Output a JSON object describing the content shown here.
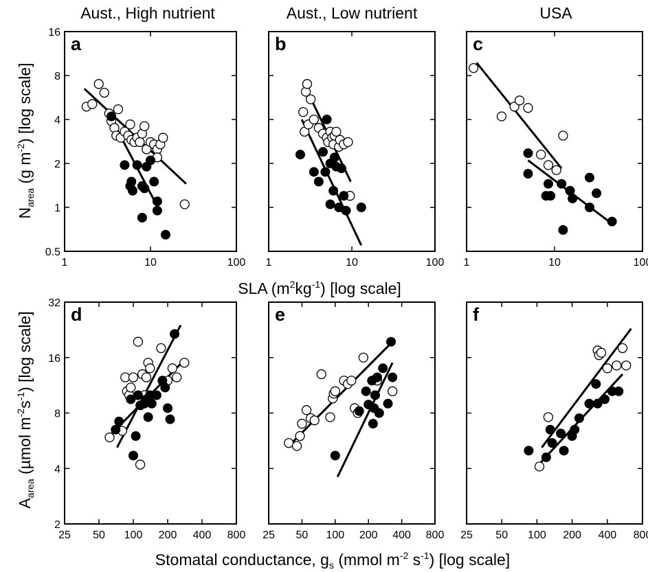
{
  "figure": {
    "column_titles": [
      "Aust., High nutrient",
      "Aust., Low nutrient",
      "USA"
    ],
    "top_row": {
      "ylabel_main": "N",
      "ylabel_sub": "area",
      "ylabel_rest": " (g m",
      "ylabel_sup": "-2",
      "ylabel_tail": ") [log scale]",
      "xlabel_main": "SLA (m",
      "xlabel_sup": "2",
      "xlabel_mid": "kg",
      "xlabel_sup2": "-1",
      "xlabel_tail": ") [log scale]"
    },
    "bottom_row": {
      "ylabel_main": "A",
      "ylabel_sub": "area",
      "ylabel_rest": " (µmol m",
      "ylabel_sup": "-2",
      "ylabel_mid": "s",
      "ylabel_sup2": "-1",
      "ylabel_tail": ") [log scale]",
      "xlabel_main": "Stomatal conductance, g",
      "xlabel_sub": "s",
      "xlabel_rest": " (mmol m",
      "xlabel_sup": "-2",
      "xlabel_mid": " s",
      "xlabel_sup2": "-1",
      "xlabel_tail": ") [log scale]"
    }
  },
  "chart_data": [
    {
      "panel": "a",
      "type": "scatter",
      "xscale": "log",
      "yscale": "log",
      "xlim": [
        1,
        100
      ],
      "ylim": [
        0.5,
        16
      ],
      "xticks": [
        "1",
        "10",
        "100"
      ],
      "xtick_values": [
        1,
        10,
        100
      ],
      "yticks": [
        "0.5",
        "1",
        "2",
        "4",
        "8",
        "16"
      ],
      "ytick_values": [
        0.5,
        1,
        2,
        4,
        8,
        16
      ],
      "series": [
        {
          "style": "open",
          "points": [
            [
              1.8,
              4.9
            ],
            [
              2.1,
              5.1
            ],
            [
              2.5,
              7.0
            ],
            [
              2.9,
              6.1
            ],
            [
              3.3,
              4.4
            ],
            [
              3.5,
              3.9
            ],
            [
              3.8,
              3.5
            ],
            [
              4.0,
              3.1
            ],
            [
              4.2,
              4.7
            ],
            [
              4.5,
              3.0
            ],
            [
              5.0,
              3.3
            ],
            [
              5.5,
              3.1
            ],
            [
              5.8,
              3.7
            ],
            [
              6.0,
              2.9
            ],
            [
              6.5,
              2.8
            ],
            [
              7.0,
              3.0
            ],
            [
              7.5,
              2.8
            ],
            [
              8.0,
              3.2
            ],
            [
              8.5,
              3.6
            ],
            [
              9.0,
              2.5
            ],
            [
              10,
              2.8
            ],
            [
              11,
              2.7
            ],
            [
              12,
              2.5
            ],
            [
              12,
              2.2
            ],
            [
              13,
              2.7
            ],
            [
              14,
              3.0
            ],
            [
              25,
              1.05
            ]
          ]
        },
        {
          "style": "filled",
          "points": [
            [
              3.5,
              4.2
            ],
            [
              5.0,
              1.95
            ],
            [
              5.8,
              1.4
            ],
            [
              6.0,
              1.5
            ],
            [
              6.2,
              1.3
            ],
            [
              7.0,
              1.95
            ],
            [
              8.0,
              1.4
            ],
            [
              8.0,
              0.85
            ],
            [
              8.5,
              1.35
            ],
            [
              9.0,
              1.9
            ],
            [
              10,
              2.1
            ],
            [
              11,
              1.5
            ],
            [
              12,
              1.1
            ],
            [
              12,
              0.95
            ],
            [
              15,
              0.65
            ]
          ]
        }
      ],
      "fit_lines": [
        [
          [
            1.7,
            6.5
          ],
          [
            26,
            1.45
          ]
        ],
        [
          [
            3.4,
            4.2
          ],
          [
            13,
            0.93
          ]
        ]
      ]
    },
    {
      "panel": "b",
      "type": "scatter",
      "xscale": "log",
      "yscale": "log",
      "xlim": [
        1,
        100
      ],
      "ylim": [
        0.5,
        16
      ],
      "xticks": [
        "1",
        "10",
        "100"
      ],
      "xtick_values": [
        1,
        10,
        100
      ],
      "yticks": [],
      "ytick_values": [
        0.5,
        1,
        2,
        4,
        8,
        16
      ],
      "series": [
        {
          "style": "open",
          "points": [
            [
              2.6,
              4.5
            ],
            [
              2.7,
              3.3
            ],
            [
              2.8,
              6.2
            ],
            [
              2.9,
              7.0
            ],
            [
              3.0,
              3.7
            ],
            [
              3.2,
              5.5
            ],
            [
              3.5,
              4.0
            ],
            [
              4.0,
              3.5
            ],
            [
              4.5,
              3.2
            ],
            [
              5.0,
              3.0
            ],
            [
              5.2,
              2.8
            ],
            [
              5.5,
              3.3
            ],
            [
              5.8,
              3.0
            ],
            [
              6.0,
              2.7
            ],
            [
              6.2,
              3.1
            ],
            [
              6.5,
              3.3
            ],
            [
              7.0,
              2.6
            ],
            [
              7.2,
              2.9
            ],
            [
              8.0,
              2.7
            ],
            [
              9.0,
              2.8
            ],
            [
              9.5,
              1.2
            ]
          ]
        },
        {
          "style": "filled",
          "points": [
            [
              2.4,
              2.3
            ],
            [
              3.5,
              1.75
            ],
            [
              4.0,
              1.5
            ],
            [
              4.5,
              2.4
            ],
            [
              4.8,
              1.75
            ],
            [
              5.0,
              4.0
            ],
            [
              5.5,
              2.0
            ],
            [
              5.5,
              1.05
            ],
            [
              6.0,
              1.3
            ],
            [
              6.2,
              2.2
            ],
            [
              6.5,
              1.9
            ],
            [
              7.0,
              1.0
            ],
            [
              7.5,
              1.85
            ],
            [
              8.0,
              1.2
            ],
            [
              8.5,
              0.95
            ],
            [
              13,
              1.0
            ]
          ]
        }
      ],
      "fit_lines": [
        [
          [
            2.5,
            4.0
          ],
          [
            13,
            0.55
          ]
        ],
        [
          [
            3.3,
            5.4
          ],
          [
            9.7,
            1.5
          ]
        ]
      ]
    },
    {
      "panel": "c",
      "type": "scatter",
      "xscale": "log",
      "yscale": "log",
      "xlim": [
        1,
        100
      ],
      "ylim": [
        0.5,
        16
      ],
      "xticks": [
        "1",
        "10",
        "100"
      ],
      "xtick_values": [
        1,
        10,
        100
      ],
      "yticks": [],
      "ytick_values": [
        0.5,
        1,
        2,
        4,
        8,
        16
      ],
      "series": [
        {
          "style": "open",
          "points": [
            [
              1.2,
              9.0
            ],
            [
              2.5,
              4.2
            ],
            [
              3.5,
              4.9
            ],
            [
              4.0,
              5.4
            ],
            [
              5.0,
              4.8
            ],
            [
              7.0,
              2.3
            ],
            [
              8.5,
              1.95
            ],
            [
              10.5,
              1.8
            ],
            [
              12.5,
              3.1
            ]
          ]
        },
        {
          "style": "filled",
          "points": [
            [
              5.0,
              2.35
            ],
            [
              5.0,
              1.7
            ],
            [
              8.0,
              1.2
            ],
            [
              8.5,
              1.45
            ],
            [
              9.0,
              1.2
            ],
            [
              12,
              1.45
            ],
            [
              12.5,
              0.7
            ],
            [
              15,
              1.3
            ],
            [
              16,
              1.15
            ],
            [
              25,
              1.6
            ],
            [
              25,
              1.0
            ],
            [
              30,
              1.25
            ],
            [
              45,
              0.8
            ]
          ]
        }
      ],
      "fit_lines": [
        [
          [
            1.3,
            9.8
          ],
          [
            12,
            1.85
          ]
        ],
        [
          [
            5,
            2.1
          ],
          [
            48,
            0.75
          ]
        ]
      ]
    },
    {
      "panel": "d",
      "type": "scatter",
      "xscale": "log",
      "yscale": "log",
      "xlim": [
        25,
        800
      ],
      "ylim": [
        2,
        32
      ],
      "xticks": [
        "25",
        "50",
        "100",
        "200",
        "400",
        "800"
      ],
      "xtick_values": [
        25,
        50,
        100,
        200,
        400,
        800
      ],
      "yticks": [
        "2",
        "4",
        "8",
        "16",
        "32"
      ],
      "ytick_values": [
        2,
        4,
        8,
        16,
        32
      ],
      "series": [
        {
          "style": "open",
          "points": [
            [
              62,
              5.9
            ],
            [
              80,
              6.4
            ],
            [
              85,
              12.5
            ],
            [
              88,
              10.5
            ],
            [
              92,
              10.0
            ],
            [
              95,
              11.0
            ],
            [
              100,
              12.5
            ],
            [
              110,
              19.5
            ],
            [
              115,
              4.2
            ],
            [
              120,
              13.0
            ],
            [
              125,
              10.0
            ],
            [
              130,
              12.5
            ],
            [
              135,
              15.0
            ],
            [
              140,
              14.0
            ],
            [
              175,
              18.0
            ],
            [
              200,
              12.0
            ],
            [
              220,
              14.0
            ],
            [
              240,
              12.5
            ],
            [
              280,
              15.0
            ]
          ]
        },
        {
          "style": "filled",
          "points": [
            [
              70,
              6.5
            ],
            [
              75,
              7.2
            ],
            [
              95,
              9.5
            ],
            [
              100,
              4.7
            ],
            [
              105,
              6.0
            ],
            [
              110,
              10.0
            ],
            [
              115,
              8.8
            ],
            [
              125,
              9.0
            ],
            [
              130,
              9.5
            ],
            [
              135,
              7.6
            ],
            [
              140,
              10.0
            ],
            [
              145,
              9.0
            ],
            [
              160,
              10.0
            ],
            [
              180,
              12.0
            ],
            [
              190,
              11.0
            ],
            [
              200,
              8.5
            ],
            [
              210,
              7.4
            ],
            [
              230,
              21.5
            ]
          ]
        }
      ],
      "fit_lines": [
        [
          [
            60,
            5.9
          ],
          [
            280,
            15.5
          ]
        ],
        [
          [
            72,
            5.2
          ],
          [
            260,
            24.0
          ]
        ]
      ]
    },
    {
      "panel": "e",
      "type": "scatter",
      "xscale": "log",
      "yscale": "log",
      "xlim": [
        25,
        800
      ],
      "ylim": [
        2,
        32
      ],
      "xticks": [
        "25",
        "50",
        "100",
        "200",
        "400",
        "800"
      ],
      "xtick_values": [
        25,
        50,
        100,
        200,
        400,
        800
      ],
      "yticks": [],
      "ytick_values": [
        2,
        4,
        8,
        16,
        32
      ],
      "series": [
        {
          "style": "open",
          "points": [
            [
              38,
              5.5
            ],
            [
              45,
              5.3
            ],
            [
              48,
              6.0
            ],
            [
              50,
              7.0
            ],
            [
              55,
              8.3
            ],
            [
              60,
              7.5
            ],
            [
              65,
              7.3
            ],
            [
              75,
              13.0
            ],
            [
              90,
              7.6
            ],
            [
              95,
              9.6
            ],
            [
              97,
              10.2
            ],
            [
              100,
              10.5
            ],
            [
              120,
              12.0
            ],
            [
              130,
              11.5
            ],
            [
              140,
              12.0
            ],
            [
              150,
              8.5
            ],
            [
              160,
              8.0
            ],
            [
              180,
              16.0
            ],
            [
              240,
              12.0
            ],
            [
              330,
              10.5
            ]
          ]
        },
        {
          "style": "filled",
          "points": [
            [
              100,
              4.7
            ],
            [
              165,
              8.2
            ],
            [
              190,
              10.5
            ],
            [
              200,
              8.9
            ],
            [
              215,
              12.0
            ],
            [
              220,
              7.0
            ],
            [
              225,
              8.5
            ],
            [
              230,
              10.0
            ],
            [
              240,
              12.5
            ],
            [
              250,
              8.0
            ],
            [
              270,
              14.0
            ],
            [
              300,
              9.0
            ],
            [
              320,
              19.5
            ],
            [
              330,
              12.5
            ]
          ]
        }
      ],
      "fit_lines": [
        [
          [
            38,
            5.3
          ],
          [
            330,
            19.5
          ]
        ],
        [
          [
            105,
            3.6
          ],
          [
            330,
            15.0
          ]
        ]
      ]
    },
    {
      "panel": "f",
      "type": "scatter",
      "xscale": "log",
      "yscale": "log",
      "xlim": [
        25,
        800
      ],
      "ylim": [
        2,
        32
      ],
      "xticks": [
        "25",
        "50",
        "100",
        "200",
        "400",
        "800"
      ],
      "xtick_values": [
        25,
        50,
        100,
        200,
        400,
        800
      ],
      "yticks": [],
      "ytick_values": [
        2,
        4,
        8,
        16,
        32
      ],
      "series": [
        {
          "style": "open",
          "points": [
            [
              105,
              4.1
            ],
            [
              125,
              7.6
            ],
            [
              330,
              17.5
            ],
            [
              340,
              16.5
            ],
            [
              355,
              17.0
            ],
            [
              400,
              14.0
            ],
            [
              480,
              14.5
            ],
            [
              540,
              18.0
            ],
            [
              580,
              14.5
            ]
          ]
        },
        {
          "style": "filled",
          "points": [
            [
              85,
              5.0
            ],
            [
              120,
              4.6
            ],
            [
              130,
              6.5
            ],
            [
              135,
              5.5
            ],
            [
              160,
              6.2
            ],
            [
              170,
              5.0
            ],
            [
              200,
              6.0
            ],
            [
              210,
              6.5
            ],
            [
              230,
              7.5
            ],
            [
              280,
              9.0
            ],
            [
              320,
              11.5
            ],
            [
              330,
              9.0
            ],
            [
              380,
              9.5
            ],
            [
              440,
              10.5
            ],
            [
              500,
              10.5
            ]
          ]
        }
      ],
      "fit_lines": [
        [
          [
            110,
            5.2
          ],
          [
            640,
            23.0
          ]
        ],
        [
          [
            100,
            4.1
          ],
          [
            540,
            13.0
          ]
        ]
      ]
    }
  ]
}
